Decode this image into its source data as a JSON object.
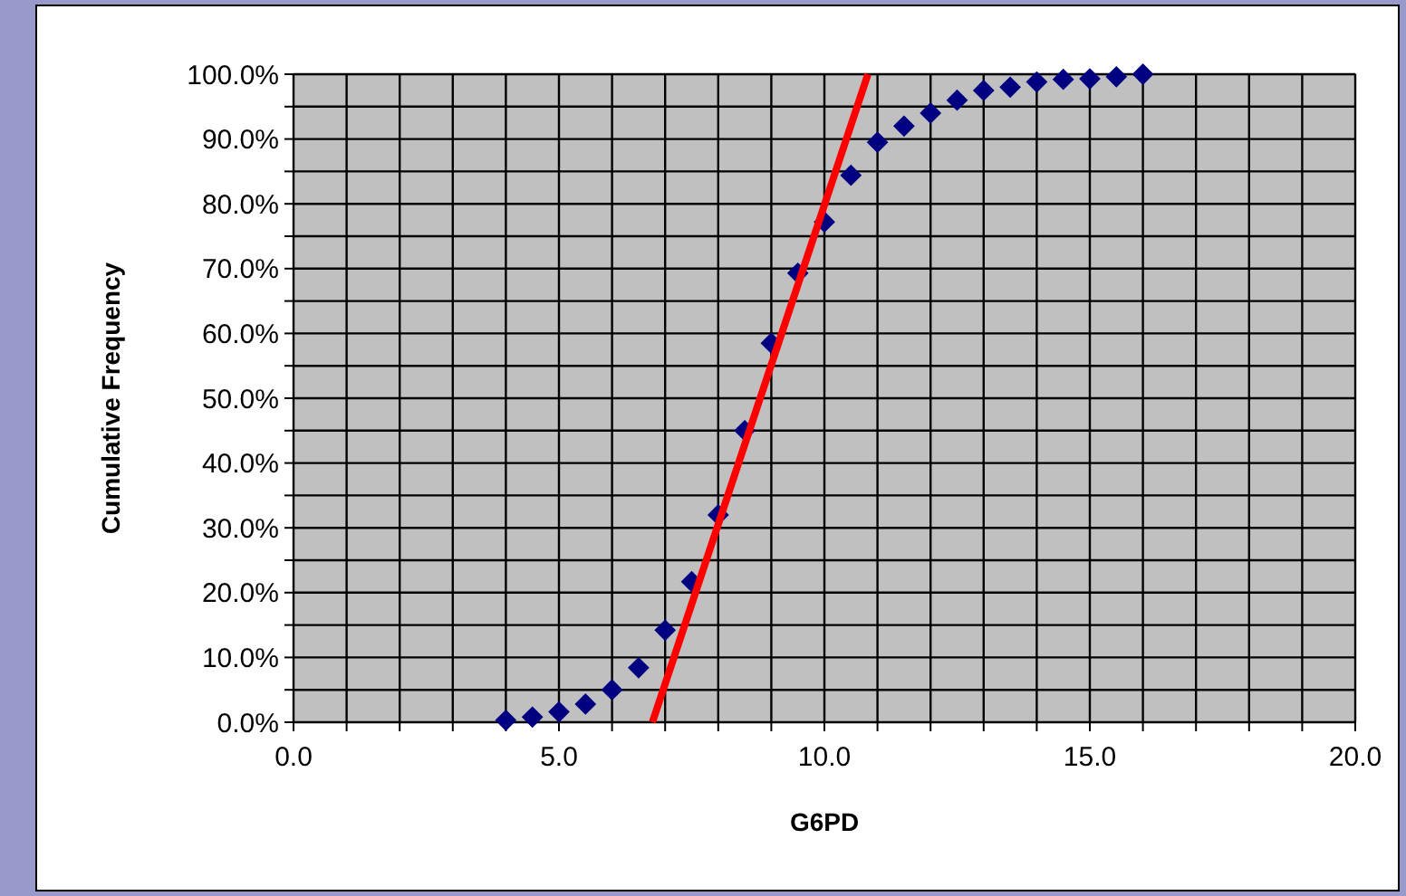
{
  "chart_data": {
    "type": "scatter",
    "xlabel": "G6PD",
    "ylabel": "Cumulative Frequency",
    "xlim": [
      0,
      20
    ],
    "ylim": [
      0,
      100
    ],
    "xticks": [
      {
        "value": 0,
        "label": "0.0"
      },
      {
        "value": 1,
        "label": null
      },
      {
        "value": 2,
        "label": null
      },
      {
        "value": 3,
        "label": null
      },
      {
        "value": 4,
        "label": null
      },
      {
        "value": 5,
        "label": "5.0"
      },
      {
        "value": 6,
        "label": null
      },
      {
        "value": 7,
        "label": null
      },
      {
        "value": 8,
        "label": null
      },
      {
        "value": 9,
        "label": null
      },
      {
        "value": 10,
        "label": "10.0"
      },
      {
        "value": 11,
        "label": null
      },
      {
        "value": 12,
        "label": null
      },
      {
        "value": 13,
        "label": null
      },
      {
        "value": 14,
        "label": null
      },
      {
        "value": 15,
        "label": "15.0"
      },
      {
        "value": 16,
        "label": null
      },
      {
        "value": 17,
        "label": null
      },
      {
        "value": 18,
        "label": null
      },
      {
        "value": 19,
        "label": null
      },
      {
        "value": 20,
        "label": "20.0"
      }
    ],
    "yticks": [
      {
        "value": 0,
        "label": "0.0%"
      },
      {
        "value": 5,
        "label": null
      },
      {
        "value": 10,
        "label": "10.0%"
      },
      {
        "value": 15,
        "label": null
      },
      {
        "value": 20,
        "label": "20.0%"
      },
      {
        "value": 25,
        "label": null
      },
      {
        "value": 30,
        "label": "30.0%"
      },
      {
        "value": 35,
        "label": null
      },
      {
        "value": 40,
        "label": "40.0%"
      },
      {
        "value": 45,
        "label": null
      },
      {
        "value": 50,
        "label": "50.0%"
      },
      {
        "value": 55,
        "label": null
      },
      {
        "value": 60,
        "label": "60.0%"
      },
      {
        "value": 65,
        "label": null
      },
      {
        "value": 70,
        "label": "70.0%"
      },
      {
        "value": 75,
        "label": null
      },
      {
        "value": 80,
        "label": "80.0%"
      },
      {
        "value": 85,
        "label": null
      },
      {
        "value": 90,
        "label": "90.0%"
      },
      {
        "value": 95,
        "label": null
      },
      {
        "value": 100,
        "label": "100.0%"
      }
    ],
    "grid": true,
    "marker": "diamond",
    "series": [
      {
        "color": "#000080",
        "x": [
          4,
          4.5,
          5,
          5.5,
          6,
          6.5,
          7,
          7.5,
          8,
          8.5,
          9,
          9.5,
          10,
          10.5,
          11,
          11.5,
          12,
          12.5,
          13,
          13.5,
          14,
          14.5,
          15,
          15.5,
          16
        ],
        "values": [
          0.3,
          0.8,
          1.6,
          2.8,
          5,
          8.4,
          14.2,
          21.7,
          32,
          45,
          58.5,
          69.3,
          77.2,
          84.4,
          89.5,
          92,
          94,
          96,
          97.5,
          98,
          98.8,
          99.2,
          99.3,
          99.6,
          100
        ]
      },
      {
        "type": "line",
        "color": "#ff0000",
        "marker": "none",
        "line_style": "solid",
        "x": [
          6.76,
          10.82
        ],
        "values": [
          0,
          100
        ]
      }
    ]
  }
}
